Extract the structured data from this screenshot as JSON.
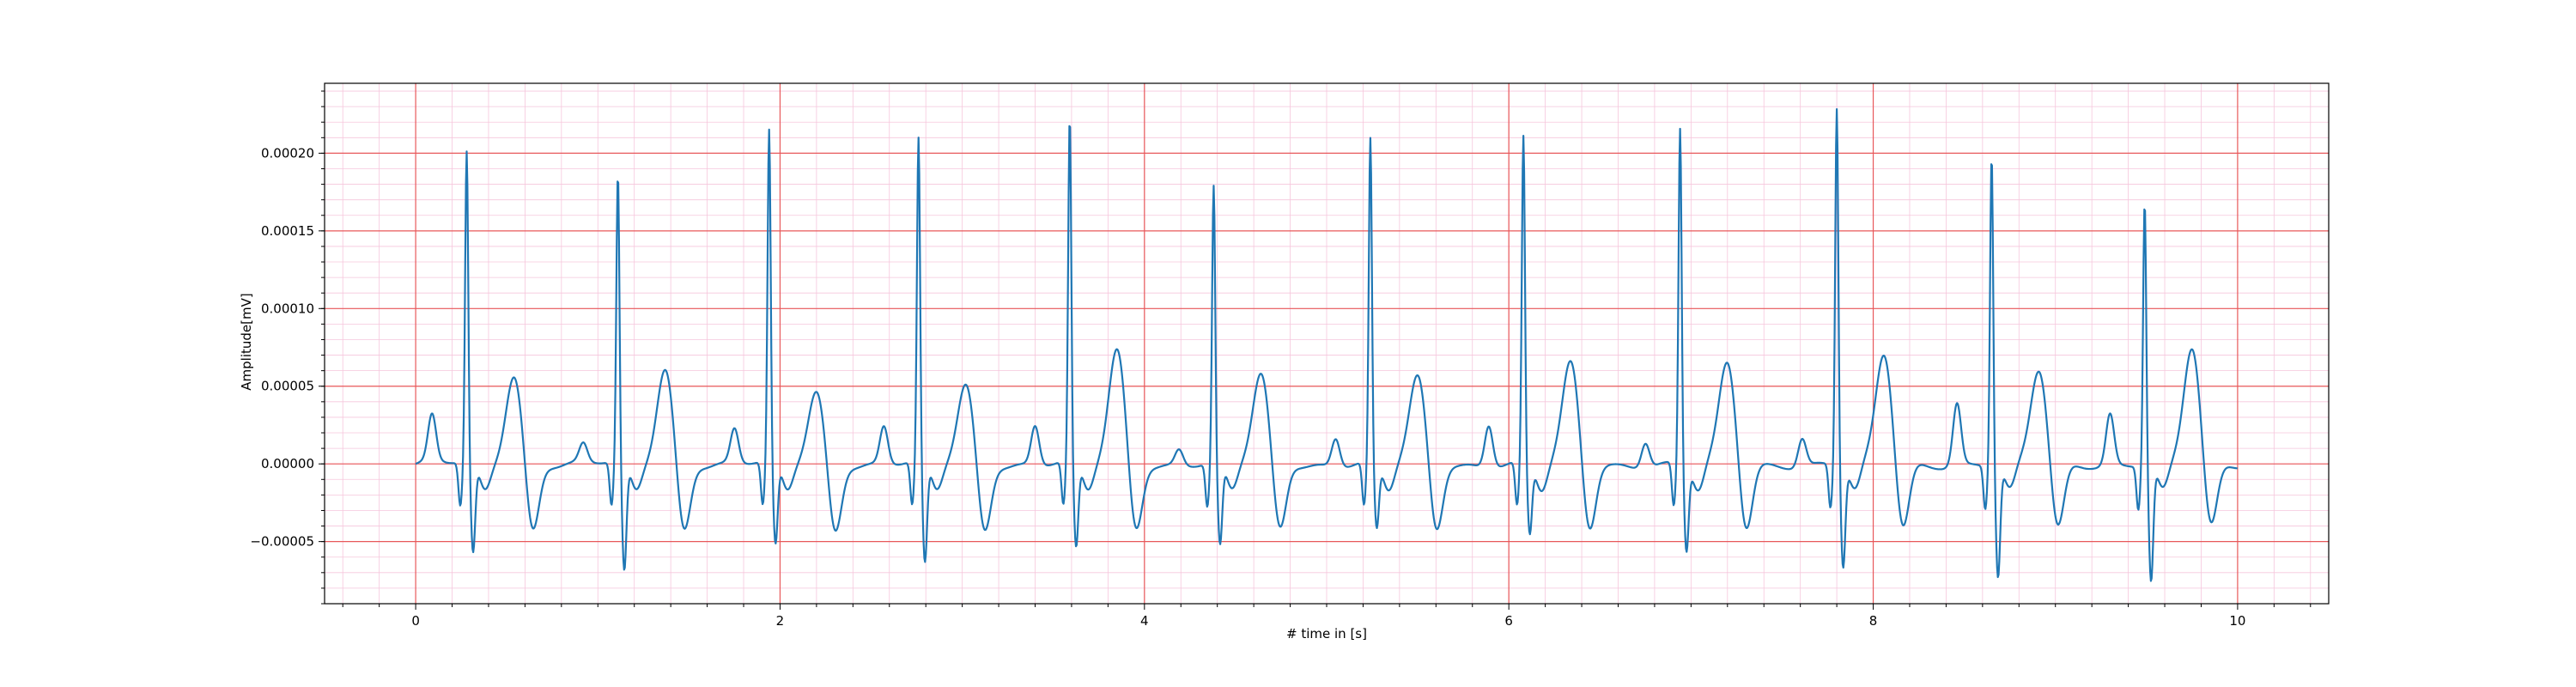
{
  "chart_data": {
    "type": "line",
    "xlabel": "# time in [s]",
    "ylabel": "Amplitude[mV]",
    "xlim": [
      -0.5,
      10.5
    ],
    "ylim": [
      -9e-05,
      0.000245
    ],
    "x_ticks": [
      0,
      2,
      4,
      6,
      8,
      10
    ],
    "x_tick_labels": [
      "0",
      "2",
      "4",
      "6",
      "8",
      "10"
    ],
    "y_ticks": [
      -5e-05,
      0.0,
      5e-05,
      0.0001,
      0.00015,
      0.0002
    ],
    "y_tick_labels": [
      "−0.00005",
      "0.00000",
      "0.00005",
      "0.00010",
      "0.00015",
      "0.00020"
    ],
    "grid": "major red, minor pink",
    "colors": {
      "line": "#1f77b4",
      "major_grid": "#e8585a",
      "minor_grid": "#f6c6dc"
    },
    "sampling_interval_s": 0.004,
    "beats": [
      {
        "t": 0.28,
        "r": 0.0002,
        "s": -5.8e-05,
        "t_wave": 5.8e-05,
        "p": 3e-05
      },
      {
        "t": 1.11,
        "r": 0.000185,
        "s": -7e-05,
        "t_wave": 6.2e-05,
        "p": 1.2e-05
      },
      {
        "t": 1.94,
        "r": 0.000213,
        "s": -5.3e-05,
        "t_wave": 4.7e-05,
        "p": 2.2e-05
      },
      {
        "t": 2.76,
        "r": 0.000208,
        "s": -6.5e-05,
        "t_wave": 5.1e-05,
        "p": 2.4e-05
      },
      {
        "t": 3.59,
        "r": 0.000221,
        "s": -5.5e-05,
        "t_wave": 7.3e-05,
        "p": 2.5e-05
      },
      {
        "t": 4.38,
        "r": 0.000178,
        "s": -5.3e-05,
        "t_wave": 5.7e-05,
        "p": 1e-05
      },
      {
        "t": 5.24,
        "r": 0.000208,
        "s": -4.2e-05,
        "t_wave": 5.5e-05,
        "p": 1.8e-05
      },
      {
        "t": 6.08,
        "r": 0.00021,
        "s": -4.5e-05,
        "t_wave": 6.4e-05,
        "p": 2.7e-05
      },
      {
        "t": 6.94,
        "r": 0.000216,
        "s": -5.5e-05,
        "t_wave": 6.4e-05,
        "p": 1.6e-05
      },
      {
        "t": 7.8,
        "r": 0.00023,
        "s": -6.5e-05,
        "t_wave": 7e-05,
        "p": 1.8e-05
      },
      {
        "t": 8.65,
        "r": 0.0002,
        "s": -7.2e-05,
        "t_wave": 6e-05,
        "p": 4e-05
      },
      {
        "t": 9.49,
        "r": 0.00017,
        "s": -7.5e-05,
        "t_wave": 7.4e-05,
        "p": 3.3e-05
      }
    ]
  }
}
